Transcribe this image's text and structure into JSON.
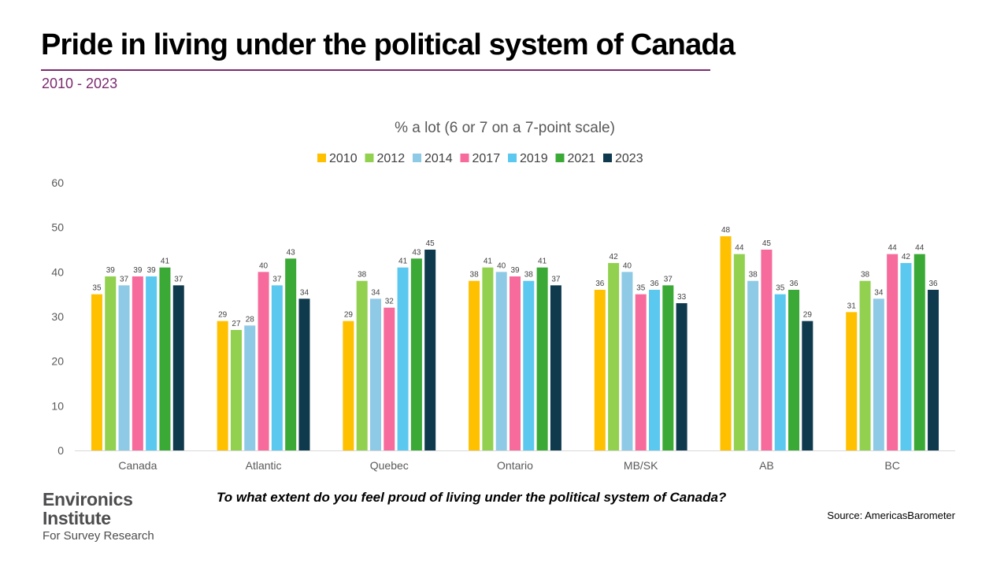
{
  "page": {
    "title": "Pride in living under the political system of Canada",
    "subtitle": "2010 - 2023",
    "question": "To what extent do you feel proud of living under the political system of Canada?",
    "source": "Source: AmericasBarometer",
    "logo": {
      "line1": "Environics",
      "line2": "Institute",
      "line3": "For Survey Research"
    }
  },
  "chart_data": {
    "type": "bar",
    "title": "% a lot (6 or 7 on a 7-point scale)",
    "categories": [
      "Canada",
      "Atlantic",
      "Quebec",
      "Ontario",
      "MB/SK",
      "AB",
      "BC"
    ],
    "series": [
      {
        "name": "2010",
        "color": "#ffc000",
        "values": [
          35,
          29,
          29,
          38,
          36,
          48,
          31
        ]
      },
      {
        "name": "2012",
        "color": "#92d050",
        "values": [
          39,
          27,
          38,
          41,
          42,
          44,
          38
        ]
      },
      {
        "name": "2014",
        "color": "#8ecae6",
        "values": [
          37,
          28,
          34,
          40,
          40,
          38,
          34
        ]
      },
      {
        "name": "2017",
        "color": "#f76b9c",
        "values": [
          39,
          40,
          32,
          39,
          35,
          45,
          44
        ]
      },
      {
        "name": "2019",
        "color": "#5bc8f0",
        "values": [
          39,
          37,
          41,
          38,
          36,
          35,
          42
        ]
      },
      {
        "name": "2021",
        "color": "#3aa935",
        "values": [
          41,
          43,
          43,
          41,
          37,
          36,
          44
        ]
      },
      {
        "name": "2023",
        "color": "#0f3a4e",
        "values": [
          37,
          34,
          45,
          37,
          33,
          29,
          36
        ]
      }
    ],
    "ylim": [
      0,
      60
    ],
    "yticks": [
      0,
      10,
      20,
      30,
      40,
      50,
      60
    ],
    "legend_position": "top-center",
    "grid": false,
    "data_labels": true
  }
}
